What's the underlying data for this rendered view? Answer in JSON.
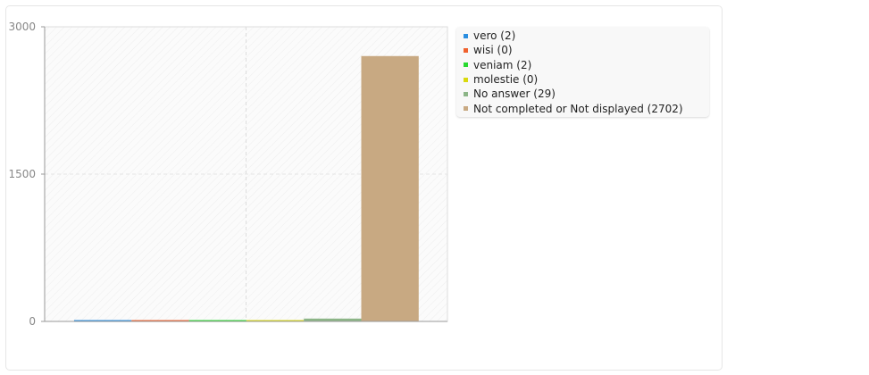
{
  "chart_data": {
    "type": "bar",
    "categories": [
      "vero",
      "wisi",
      "veniam",
      "molestie",
      "No answer",
      "Not completed or Not displayed"
    ],
    "series": [
      {
        "name": "vero (2)",
        "value": 2,
        "color": "#2a8ee0"
      },
      {
        "name": "wisi (0)",
        "value": 0,
        "color": "#f0612d"
      },
      {
        "name": "veniam (2)",
        "value": 2,
        "color": "#28d92f"
      },
      {
        "name": "molestie (0)",
        "value": 0,
        "color": "#d9d90e"
      },
      {
        "name": "No answer (29)",
        "value": 29,
        "color": "#8cb587"
      },
      {
        "name": "Not completed or Not displayed (2702)",
        "value": 2702,
        "color": "#c8a982"
      }
    ],
    "yticks": [
      "0",
      "1500",
      "3000"
    ],
    "ylim": [
      0,
      3000
    ],
    "grid": true,
    "legend": "right"
  }
}
